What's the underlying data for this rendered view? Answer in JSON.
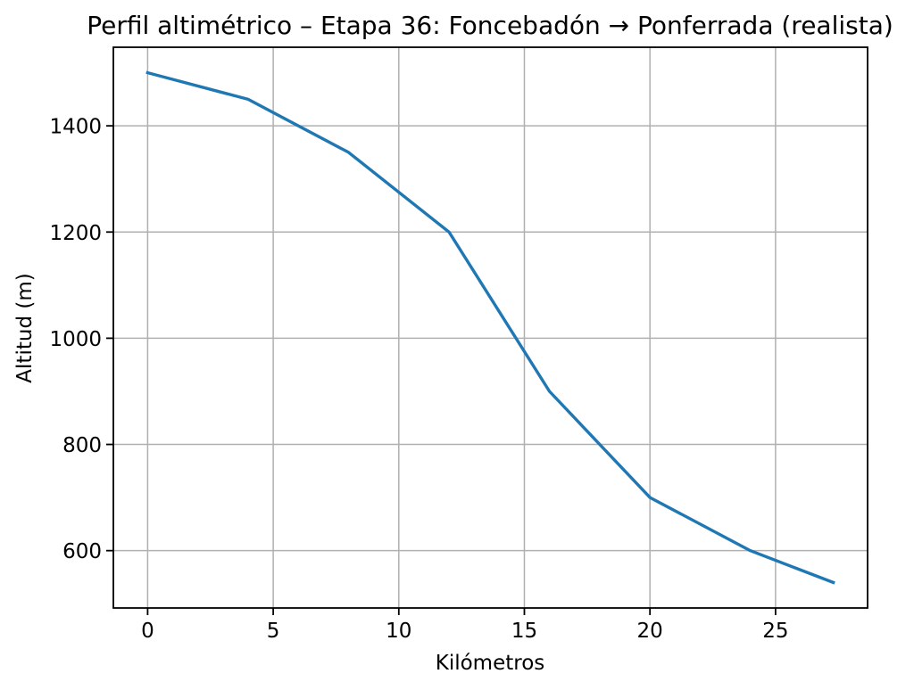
{
  "chart_data": {
    "type": "line",
    "title": "Perfil altimétrico – Etapa 36: Foncebadón → Ponferrada (realista)",
    "xlabel": "Kilómetros",
    "ylabel": "Altitud (m)",
    "x": [
      0,
      4,
      8,
      12,
      16,
      20,
      24,
      27.3
    ],
    "y": [
      1500,
      1450,
      1350,
      1200,
      900,
      700,
      600,
      540
    ],
    "xlim": [
      -1.365,
      28.665
    ],
    "ylim": [
      492,
      1548
    ],
    "xticks": [
      0,
      5,
      10,
      15,
      20,
      25
    ],
    "yticks": [
      600,
      800,
      1000,
      1200,
      1400
    ],
    "grid": true,
    "legend_position": "none",
    "line_color": "#1f77b4",
    "grid_color": "#b0b0b0",
    "spine_color": "#000000",
    "text_color": "#000000",
    "background_color": "#ffffff"
  }
}
